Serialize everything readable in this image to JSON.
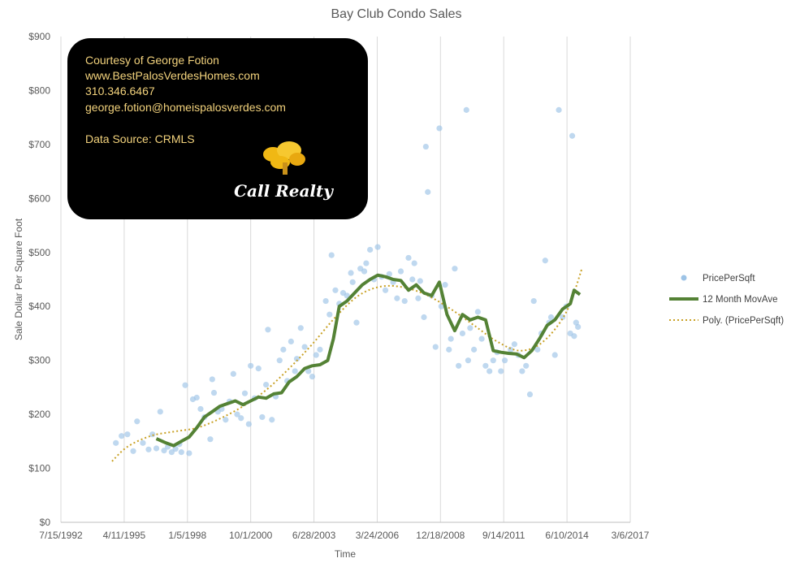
{
  "chart_data": {
    "type": "scatter",
    "title": "Bay Club Condo Sales",
    "xlabel": "Time",
    "ylabel": "Sale Dollar Per Square Foot",
    "xlim": [
      "1992-07-15",
      "2017-03-06"
    ],
    "ylim": [
      0,
      900
    ],
    "x_ticks": [
      "7/15/1992",
      "4/11/1995",
      "1/5/1998",
      "10/1/2000",
      "6/28/2003",
      "3/24/2006",
      "12/18/2008",
      "9/14/2011",
      "6/10/2014",
      "3/6/2017"
    ],
    "y_ticks": [
      "$0",
      "$100",
      "$200",
      "$300",
      "$400",
      "$500",
      "$600",
      "$700",
      "$800",
      "$900"
    ],
    "grid": "vertical",
    "legend_position": "right",
    "series": [
      {
        "name": "PricePerSqft",
        "kind": "scatter",
        "color": "#9dc3e6",
        "points": [
          [
            "1994-12-01",
            147
          ],
          [
            "1995-03-01",
            160
          ],
          [
            "1995-06-01",
            163
          ],
          [
            "1995-09-01",
            132
          ],
          [
            "1995-11-01",
            187
          ],
          [
            "1996-02-01",
            147
          ],
          [
            "1996-05-01",
            135
          ],
          [
            "1996-07-01",
            163
          ],
          [
            "1996-09-01",
            137
          ],
          [
            "1996-11-01",
            205
          ],
          [
            "1997-01-01",
            133
          ],
          [
            "1997-03-01",
            140
          ],
          [
            "1997-05-01",
            130
          ],
          [
            "1997-07-01",
            136
          ],
          [
            "1997-09-01",
            145
          ],
          [
            "1997-10-01",
            130
          ],
          [
            "1997-12-01",
            254
          ],
          [
            "1998-02-01",
            128
          ],
          [
            "1998-04-01",
            228
          ],
          [
            "1998-06-01",
            231
          ],
          [
            "1998-08-01",
            210
          ],
          [
            "1998-10-01",
            195
          ],
          [
            "1999-01-01",
            154
          ],
          [
            "1999-02-01",
            265
          ],
          [
            "1999-03-01",
            240
          ],
          [
            "1999-05-01",
            205
          ],
          [
            "1999-07-01",
            210
          ],
          [
            "1999-09-01",
            190
          ],
          [
            "1999-11-01",
            224
          ],
          [
            "2000-01-01",
            275
          ],
          [
            "2000-03-01",
            200
          ],
          [
            "2000-05-01",
            193
          ],
          [
            "2000-07-01",
            239
          ],
          [
            "2000-09-01",
            182
          ],
          [
            "2000-10-01",
            290
          ],
          [
            "2000-12-01",
            230
          ],
          [
            "2001-02-01",
            285
          ],
          [
            "2001-04-01",
            195
          ],
          [
            "2001-06-01",
            255
          ],
          [
            "2001-07-01",
            357
          ],
          [
            "2001-09-01",
            190
          ],
          [
            "2001-11-01",
            233
          ],
          [
            "2002-01-01",
            300
          ],
          [
            "2002-03-01",
            320
          ],
          [
            "2002-05-01",
            262
          ],
          [
            "2002-07-01",
            335
          ],
          [
            "2002-09-01",
            280
          ],
          [
            "2002-10-01",
            303
          ],
          [
            "2002-12-01",
            360
          ],
          [
            "2003-02-01",
            325
          ],
          [
            "2003-04-01",
            280
          ],
          [
            "2003-06-01",
            270
          ],
          [
            "2003-08-01",
            310
          ],
          [
            "2003-10-01",
            320
          ],
          [
            "2004-01-01",
            410
          ],
          [
            "2004-03-01",
            385
          ],
          [
            "2004-04-01",
            495
          ],
          [
            "2004-06-01",
            430
          ],
          [
            "2004-08-01",
            405
          ],
          [
            "2004-10-01",
            425
          ],
          [
            "2004-12-01",
            420
          ],
          [
            "2005-02-01",
            462
          ],
          [
            "2005-03-01",
            445
          ],
          [
            "2005-05-01",
            370
          ],
          [
            "2005-07-01",
            470
          ],
          [
            "2005-09-01",
            465
          ],
          [
            "2005-10-01",
            480
          ],
          [
            "2005-12-01",
            505
          ],
          [
            "2006-02-01",
            450
          ],
          [
            "2006-04-01",
            510
          ],
          [
            "2006-06-01",
            455
          ],
          [
            "2006-08-01",
            430
          ],
          [
            "2006-10-01",
            460
          ],
          [
            "2006-12-01",
            445
          ],
          [
            "2007-02-01",
            415
          ],
          [
            "2007-04-01",
            465
          ],
          [
            "2007-06-01",
            410
          ],
          [
            "2007-08-01",
            490
          ],
          [
            "2007-10-01",
            450
          ],
          [
            "2007-11-01",
            480
          ],
          [
            "2008-01-01",
            415
          ],
          [
            "2008-02-01",
            447
          ],
          [
            "2008-04-01",
            380
          ],
          [
            "2008-05-01",
            696
          ],
          [
            "2008-06-01",
            612
          ],
          [
            "2008-08-01",
            420
          ],
          [
            "2008-10-01",
            325
          ],
          [
            "2008-12-01",
            730
          ],
          [
            "2009-01-01",
            400
          ],
          [
            "2009-03-01",
            440
          ],
          [
            "2009-05-01",
            320
          ],
          [
            "2009-06-01",
            340
          ],
          [
            "2009-08-01",
            470
          ],
          [
            "2009-10-01",
            290
          ],
          [
            "2009-12-01",
            350
          ],
          [
            "2010-02-01",
            764
          ],
          [
            "2010-03-01",
            300
          ],
          [
            "2010-04-01",
            360
          ],
          [
            "2010-06-01",
            320
          ],
          [
            "2010-08-01",
            390
          ],
          [
            "2010-10-01",
            340
          ],
          [
            "2010-12-01",
            290
          ],
          [
            "2011-02-01",
            280
          ],
          [
            "2011-04-01",
            300
          ],
          [
            "2011-06-01",
            315
          ],
          [
            "2011-08-01",
            280
          ],
          [
            "2011-10-01",
            300
          ],
          [
            "2012-01-01",
            320
          ],
          [
            "2012-03-01",
            330
          ],
          [
            "2012-05-01",
            310
          ],
          [
            "2012-07-01",
            280
          ],
          [
            "2012-09-01",
            290
          ],
          [
            "2012-11-01",
            237
          ],
          [
            "2013-01-01",
            410
          ],
          [
            "2013-03-01",
            320
          ],
          [
            "2013-05-01",
            350
          ],
          [
            "2013-07-01",
            485
          ],
          [
            "2013-09-01",
            370
          ],
          [
            "2013-10-01",
            380
          ],
          [
            "2013-12-01",
            310
          ],
          [
            "2014-02-01",
            764
          ],
          [
            "2014-04-01",
            380
          ],
          [
            "2014-06-01",
            400
          ],
          [
            "2014-08-01",
            350
          ],
          [
            "2014-09-01",
            716
          ],
          [
            "2014-10-01",
            345
          ],
          [
            "2014-11-01",
            370
          ],
          [
            "2014-12-01",
            362
          ]
        ]
      },
      {
        "name": "12 Month MovAve",
        "kind": "line",
        "color": "#548235",
        "points": [
          [
            "1996-09-01",
            155
          ],
          [
            "1997-02-01",
            147
          ],
          [
            "1997-06-01",
            142
          ],
          [
            "1997-10-01",
            150
          ],
          [
            "1998-02-01",
            158
          ],
          [
            "1998-06-01",
            175
          ],
          [
            "1998-10-01",
            195
          ],
          [
            "1999-02-01",
            205
          ],
          [
            "1999-06-01",
            215
          ],
          [
            "1999-10-01",
            220
          ],
          [
            "2000-02-01",
            225
          ],
          [
            "2000-06-01",
            218
          ],
          [
            "2000-10-01",
            225
          ],
          [
            "2001-02-01",
            232
          ],
          [
            "2001-06-01",
            230
          ],
          [
            "2001-10-01",
            238
          ],
          [
            "2002-02-01",
            240
          ],
          [
            "2002-06-01",
            260
          ],
          [
            "2002-10-01",
            270
          ],
          [
            "2003-02-01",
            285
          ],
          [
            "2003-06-01",
            290
          ],
          [
            "2003-10-01",
            292
          ],
          [
            "2004-02-01",
            300
          ],
          [
            "2004-05-01",
            340
          ],
          [
            "2004-08-01",
            400
          ],
          [
            "2004-12-01",
            410
          ],
          [
            "2005-04-01",
            425
          ],
          [
            "2005-08-01",
            440
          ],
          [
            "2005-12-01",
            450
          ],
          [
            "2006-04-01",
            458
          ],
          [
            "2006-08-01",
            455
          ],
          [
            "2006-12-01",
            450
          ],
          [
            "2007-04-01",
            448
          ],
          [
            "2007-08-01",
            430
          ],
          [
            "2007-12-01",
            440
          ],
          [
            "2008-04-01",
            425
          ],
          [
            "2008-08-01",
            420
          ],
          [
            "2008-12-01",
            445
          ],
          [
            "2009-04-01",
            385
          ],
          [
            "2009-08-01",
            355
          ],
          [
            "2009-12-01",
            385
          ],
          [
            "2010-04-01",
            375
          ],
          [
            "2010-08-01",
            380
          ],
          [
            "2010-12-01",
            375
          ],
          [
            "2011-04-01",
            318
          ],
          [
            "2011-08-01",
            315
          ],
          [
            "2011-12-01",
            313
          ],
          [
            "2012-04-01",
            312
          ],
          [
            "2012-08-01",
            305
          ],
          [
            "2012-12-01",
            318
          ],
          [
            "2013-04-01",
            340
          ],
          [
            "2013-08-01",
            365
          ],
          [
            "2013-12-01",
            375
          ],
          [
            "2014-04-01",
            395
          ],
          [
            "2014-08-01",
            405
          ],
          [
            "2014-10-01",
            430
          ],
          [
            "2015-01-01",
            422
          ]
        ]
      },
      {
        "name": "Poly. (PricePerSqft)",
        "kind": "trendline",
        "color": "#c9a227",
        "points": [
          [
            "1994-10-01",
            113
          ],
          [
            "1995-06-01",
            140
          ],
          [
            "1996-06-01",
            160
          ],
          [
            "1997-06-01",
            168
          ],
          [
            "1998-06-01",
            175
          ],
          [
            "1999-06-01",
            192
          ],
          [
            "2000-06-01",
            215
          ],
          [
            "2001-06-01",
            245
          ],
          [
            "2002-06-01",
            285
          ],
          [
            "2003-06-01",
            330
          ],
          [
            "2004-06-01",
            380
          ],
          [
            "2005-06-01",
            420
          ],
          [
            "2006-06-01",
            437
          ],
          [
            "2007-06-01",
            435
          ],
          [
            "2008-06-01",
            420
          ],
          [
            "2009-06-01",
            395
          ],
          [
            "2010-06-01",
            365
          ],
          [
            "2011-06-01",
            335
          ],
          [
            "2012-06-01",
            318
          ],
          [
            "2013-06-01",
            335
          ],
          [
            "2014-06-01",
            390
          ],
          [
            "2015-02-01",
            470
          ]
        ]
      }
    ]
  },
  "info_card": {
    "lines": [
      "Courtesy of George Fotion",
      "www.BestPalosVerdesHomes.com",
      "310.346.6467",
      "george.fotion@homeispalosverdes.com",
      "",
      "Data Source: CRMLS"
    ],
    "logo_text": "Call Realty"
  },
  "colors": {
    "card_bg": "#000000",
    "card_text": "#f2d27c",
    "logo_gold": "#f0b814",
    "grid": "#d9d9d9"
  }
}
